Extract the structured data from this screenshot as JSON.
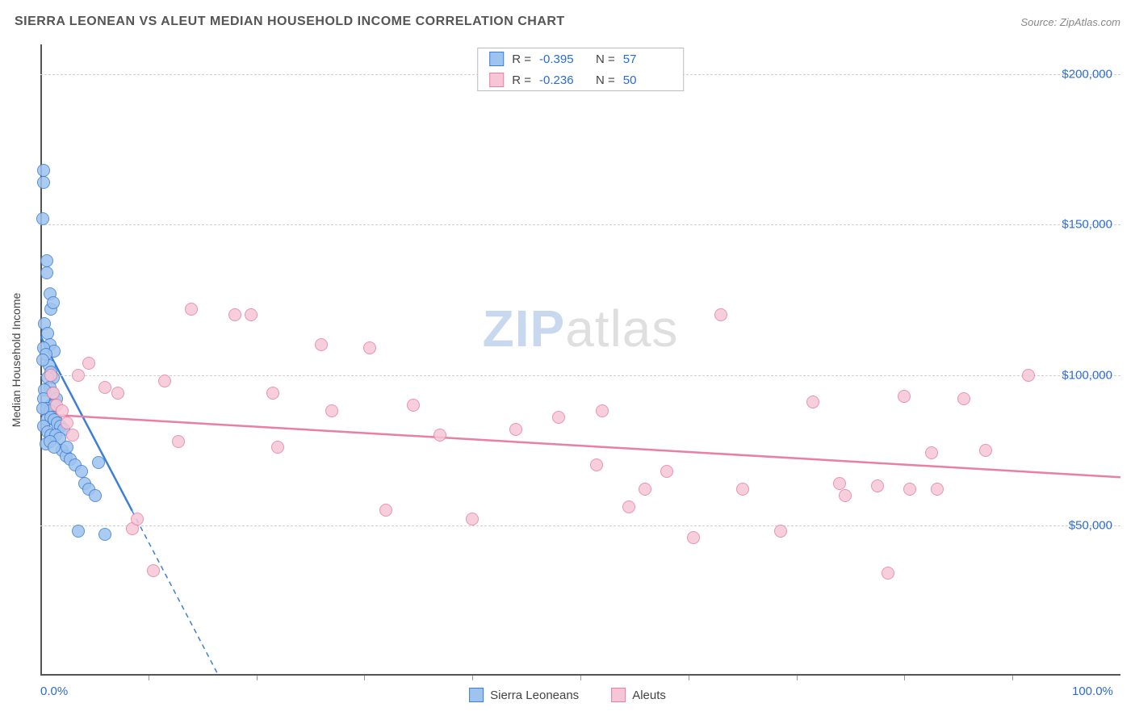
{
  "title": "SIERRA LEONEAN VS ALEUT MEDIAN HOUSEHOLD INCOME CORRELATION CHART",
  "source_label": "Source: ZipAtlas.com",
  "watermark": {
    "part1": "ZIP",
    "part2": "atlas"
  },
  "y_axis_label": "Median Household Income",
  "chart": {
    "type": "scatter",
    "xlim": [
      0,
      100
    ],
    "ylim": [
      0,
      210000
    ],
    "x_ticks": [
      0,
      100
    ],
    "x_tick_labels": [
      "0.0%",
      "100.0%"
    ],
    "x_minor_ticks": [
      10,
      20,
      30,
      40,
      50,
      60,
      70,
      80,
      90
    ],
    "y_ticks": [
      50000,
      100000,
      150000,
      200000
    ],
    "y_tick_labels": [
      "$50,000",
      "$100,000",
      "$150,000",
      "$200,000"
    ],
    "background_color": "#ffffff",
    "grid_color": "#d0d0d0",
    "axis_color": "#555555",
    "tick_label_color": "#2b6bd8",
    "point_radius": 8,
    "point_border_width": 1.5,
    "point_fill_opacity": 0.28,
    "series": [
      {
        "name": "Sierra Leoneans",
        "color_border": "#3d7fd6",
        "color_fill": "#9ec3ee",
        "r": -0.395,
        "n": 57,
        "trend": {
          "x1": 0,
          "y1": 113000,
          "x2": 16.5,
          "y2": 0,
          "dash_after_x": 8.5
        },
        "points": [
          [
            0.3,
            168000
          ],
          [
            0.3,
            164000
          ],
          [
            0.2,
            152000
          ],
          [
            0.6,
            138000
          ],
          [
            0.6,
            134000
          ],
          [
            0.9,
            127000
          ],
          [
            1.0,
            122000
          ],
          [
            1.2,
            124000
          ],
          [
            0.4,
            117000
          ],
          [
            0.7,
            114000
          ],
          [
            0.9,
            110000
          ],
          [
            1.3,
            108000
          ],
          [
            0.3,
            109000
          ],
          [
            0.5,
            107000
          ],
          [
            0.8,
            103000
          ],
          [
            1.0,
            101000
          ],
          [
            1.2,
            99000
          ],
          [
            0.2,
            105000
          ],
          [
            0.7,
            99000
          ],
          [
            0.9,
            96000
          ],
          [
            1.1,
            94000
          ],
          [
            1.5,
            92000
          ],
          [
            0.4,
            95000
          ],
          [
            1.0,
            90000
          ],
          [
            1.3,
            90000
          ],
          [
            0.3,
            92000
          ],
          [
            0.6,
            89000
          ],
          [
            0.9,
            88000
          ],
          [
            1.2,
            86000
          ],
          [
            1.4,
            85000
          ],
          [
            0.2,
            89000
          ],
          [
            0.6,
            85000
          ],
          [
            1.0,
            86000
          ],
          [
            1.3,
            85000
          ],
          [
            1.6,
            84000
          ],
          [
            1.9,
            83000
          ],
          [
            2.2,
            82000
          ],
          [
            0.3,
            83000
          ],
          [
            0.7,
            81000
          ],
          [
            1.0,
            80000
          ],
          [
            1.4,
            80000
          ],
          [
            1.8,
            79000
          ],
          [
            2.0,
            75000
          ],
          [
            2.4,
            73000
          ],
          [
            2.8,
            72000
          ],
          [
            0.5,
            77000
          ],
          [
            0.9,
            78000
          ],
          [
            1.3,
            76000
          ],
          [
            2.5,
            76000
          ],
          [
            3.2,
            70000
          ],
          [
            3.8,
            68000
          ],
          [
            4.1,
            64000
          ],
          [
            4.5,
            62000
          ],
          [
            5.1,
            60000
          ],
          [
            3.5,
            48000
          ],
          [
            6.0,
            47000
          ],
          [
            5.4,
            71000
          ]
        ]
      },
      {
        "name": "Aleuts",
        "color_border": "#e97fa5",
        "color_fill": "#f6c6d6",
        "r": -0.236,
        "n": 50,
        "trend": {
          "x1": 0,
          "y1": 87000,
          "x2": 100,
          "y2": 66000,
          "dash_after_x": 100
        },
        "points": [
          [
            1.0,
            100000
          ],
          [
            1.2,
            94000
          ],
          [
            1.5,
            90000
          ],
          [
            2.0,
            88000
          ],
          [
            2.5,
            84000
          ],
          [
            3.0,
            80000
          ],
          [
            3.5,
            100000
          ],
          [
            4.5,
            104000
          ],
          [
            6.0,
            96000
          ],
          [
            7.2,
            94000
          ],
          [
            8.5,
            49000
          ],
          [
            9.0,
            52000
          ],
          [
            10.5,
            35000
          ],
          [
            11.5,
            98000
          ],
          [
            12.8,
            78000
          ],
          [
            14.0,
            122000
          ],
          [
            18.0,
            120000
          ],
          [
            19.5,
            120000
          ],
          [
            21.5,
            94000
          ],
          [
            22.0,
            76000
          ],
          [
            26.0,
            110000
          ],
          [
            27.0,
            88000
          ],
          [
            30.5,
            109000
          ],
          [
            32.0,
            55000
          ],
          [
            34.5,
            90000
          ],
          [
            37.0,
            80000
          ],
          [
            40.0,
            52000
          ],
          [
            44.0,
            82000
          ],
          [
            48.0,
            86000
          ],
          [
            51.5,
            70000
          ],
          [
            52.0,
            88000
          ],
          [
            54.5,
            56000
          ],
          [
            56.0,
            62000
          ],
          [
            58.0,
            68000
          ],
          [
            60.5,
            46000
          ],
          [
            63.0,
            120000
          ],
          [
            65.0,
            62000
          ],
          [
            68.5,
            48000
          ],
          [
            71.5,
            91000
          ],
          [
            74.0,
            64000
          ],
          [
            74.5,
            60000
          ],
          [
            77.5,
            63000
          ],
          [
            78.5,
            34000
          ],
          [
            80.0,
            93000
          ],
          [
            80.5,
            62000
          ],
          [
            82.5,
            74000
          ],
          [
            83.0,
            62000
          ],
          [
            85.5,
            92000
          ],
          [
            87.5,
            75000
          ],
          [
            91.5,
            100000
          ]
        ]
      }
    ]
  },
  "legend_top": {
    "r_label": "R =",
    "n_label": "N ="
  },
  "legend_bottom": {
    "series_labels": [
      "Sierra Leoneans",
      "Aleuts"
    ]
  }
}
